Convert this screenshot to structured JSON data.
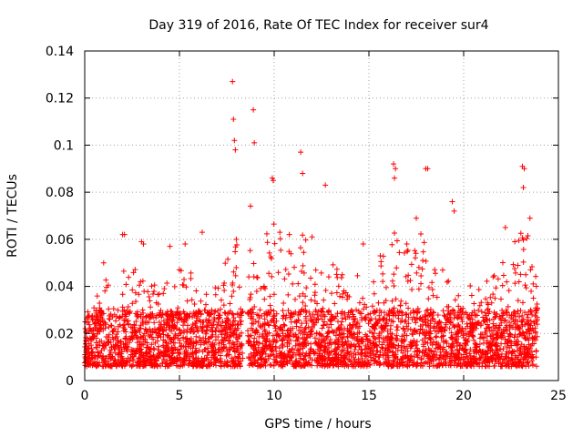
{
  "chart_data": {
    "type": "scatter",
    "title": "Day 319 of 2016, Rate Of TEC Index for receiver sur4",
    "xlabel": "GPS time / hours",
    "ylabel": "ROTI / TECUs",
    "xlim": [
      0,
      25
    ],
    "ylim": [
      0,
      0.14
    ],
    "x_ticks": [
      0,
      5,
      10,
      15,
      20,
      25
    ],
    "y_ticks": [
      0,
      0.02,
      0.04,
      0.06,
      0.08,
      0.1,
      0.12,
      0.14
    ],
    "x_tick_labels": [
      "0",
      "5",
      "10",
      "15",
      "20",
      "25"
    ],
    "y_tick_labels": [
      "0",
      "0.02",
      "0.04",
      "0.06",
      "0.08",
      "0.1",
      "0.12",
      "0.14"
    ],
    "grid": true,
    "marker": "+",
    "color": "#ff0000",
    "data_gap_hours": [
      8.35,
      8.6
    ],
    "data_range_hours": [
      0.0,
      23.9
    ],
    "series": [
      {
        "name": "ROTI",
        "points": [
          [
            7.8,
            0.127
          ],
          [
            7.85,
            0.111
          ],
          [
            7.9,
            0.102
          ],
          [
            7.95,
            0.098
          ],
          [
            8.9,
            0.115
          ],
          [
            8.95,
            0.101
          ],
          [
            11.4,
            0.097
          ],
          [
            11.5,
            0.088
          ],
          [
            12.7,
            0.083
          ],
          [
            16.3,
            0.092
          ],
          [
            16.4,
            0.09
          ],
          [
            16.35,
            0.086
          ],
          [
            18.0,
            0.09
          ],
          [
            18.1,
            0.09
          ],
          [
            23.1,
            0.091
          ],
          [
            23.2,
            0.09
          ],
          [
            23.15,
            0.082
          ],
          [
            19.4,
            0.076
          ],
          [
            19.5,
            0.072
          ],
          [
            9.9,
            0.086
          ],
          [
            9.95,
            0.085
          ],
          [
            2.0,
            0.062
          ],
          [
            2.1,
            0.062
          ],
          [
            6.2,
            0.063
          ],
          [
            4.5,
            0.057
          ],
          [
            5.3,
            0.058
          ],
          [
            1.0,
            0.05
          ],
          [
            3.0,
            0.059
          ],
          [
            3.1,
            0.058
          ],
          [
            22.2,
            0.065
          ],
          [
            22.7,
            0.059
          ],
          [
            23.5,
            0.069
          ],
          [
            17.5,
            0.069
          ],
          [
            17.0,
            0.058
          ],
          [
            14.7,
            0.058
          ],
          [
            15.6,
            0.053
          ],
          [
            10.3,
            0.063
          ],
          [
            10.8,
            0.062
          ],
          [
            12.0,
            0.061
          ],
          [
            8.0,
            0.06
          ]
        ],
        "generated_density": {
          "count": 3600,
          "typical_range": [
            0.006,
            0.03
          ],
          "peak_envelope": [
            [
              0.0,
              0.025
            ],
            [
              0.5,
              0.032
            ],
            [
              1.0,
              0.045
            ],
            [
              1.5,
              0.04
            ],
            [
              2.0,
              0.05
            ],
            [
              2.5,
              0.045
            ],
            [
              3.0,
              0.055
            ],
            [
              3.5,
              0.042
            ],
            [
              4.0,
              0.04
            ],
            [
              4.5,
              0.05
            ],
            [
              5.0,
              0.05
            ],
            [
              5.5,
              0.048
            ],
            [
              6.0,
              0.045
            ],
            [
              6.5,
              0.04
            ],
            [
              7.0,
              0.04
            ],
            [
              7.5,
              0.055
            ],
            [
              8.0,
              0.06
            ],
            [
              8.3,
              0.05
            ],
            [
              8.7,
              0.075
            ],
            [
              9.0,
              0.07
            ],
            [
              9.5,
              0.065
            ],
            [
              10.0,
              0.07
            ],
            [
              10.5,
              0.06
            ],
            [
              11.0,
              0.058
            ],
            [
              11.5,
              0.065
            ],
            [
              12.0,
              0.055
            ],
            [
              12.5,
              0.06
            ],
            [
              13.0,
              0.05
            ],
            [
              13.5,
              0.048
            ],
            [
              14.0,
              0.048
            ],
            [
              14.5,
              0.05
            ],
            [
              15.0,
              0.045
            ],
            [
              15.5,
              0.05
            ],
            [
              16.0,
              0.06
            ],
            [
              16.5,
              0.065
            ],
            [
              17.0,
              0.055
            ],
            [
              17.5,
              0.06
            ],
            [
              18.0,
              0.065
            ],
            [
              18.5,
              0.05
            ],
            [
              19.0,
              0.05
            ],
            [
              19.5,
              0.055
            ],
            [
              20.0,
              0.045
            ],
            [
              20.5,
              0.04
            ],
            [
              21.0,
              0.042
            ],
            [
              21.5,
              0.045
            ],
            [
              22.0,
              0.05
            ],
            [
              22.5,
              0.055
            ],
            [
              23.0,
              0.065
            ],
            [
              23.5,
              0.065
            ],
            [
              23.9,
              0.04
            ]
          ]
        }
      }
    ]
  }
}
